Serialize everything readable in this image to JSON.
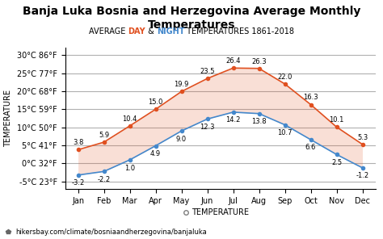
{
  "chart_data": {
    "type": "range_area",
    "title": "Banja Luka Bosnia and Herzegovina Average Monthly Temperatures",
    "subtitle": [
      {
        "text": "AVERAGE "
      },
      {
        "text": "DAY",
        "color": "#e05020"
      },
      {
        "text": " & "
      },
      {
        "text": "NIGHT",
        "color": "#4488cc"
      },
      {
        "text": " TEMPERATURES 1861-2018"
      }
    ],
    "categories": [
      "Jan",
      "Feb",
      "Mar",
      "Apr",
      "May",
      "Jun",
      "Jul",
      "Aug",
      "Sep",
      "Oct",
      "Nov",
      "Dec"
    ],
    "series": [
      {
        "name": "DAY",
        "color": "#e05020",
        "values": [
          3.8,
          5.9,
          10.4,
          15.0,
          19.9,
          23.5,
          26.4,
          26.3,
          22.0,
          16.3,
          10.1,
          5.3
        ]
      },
      {
        "name": "NIGHT",
        "color": "#4488cc",
        "values": [
          -3.2,
          -2.2,
          1.0,
          4.9,
          9.0,
          12.3,
          14.2,
          13.8,
          10.7,
          6.6,
          2.5,
          -1.2
        ]
      }
    ],
    "ylim": [
      -7,
      32
    ],
    "yticks": [
      {
        "value": -5,
        "label": "-5°C 23°F"
      },
      {
        "value": 0,
        "label": "0°C 32°F"
      },
      {
        "value": 5,
        "label": "5°C 41°F"
      },
      {
        "value": 10,
        "label": "10°C 50°F"
      },
      {
        "value": 15,
        "label": "15°C 59°F"
      },
      {
        "value": 20,
        "label": "20°C 68°F"
      },
      {
        "value": 25,
        "label": "25°C 77°F"
      },
      {
        "value": 30,
        "label": "30°C 86°F"
      }
    ],
    "ylabel": "TEMPERATURE",
    "xlabel": "TEMPERATURE",
    "footer": "hikersbay.com/climate/bosniaandherzegovina/banjaluka",
    "grid": "y",
    "data_labels": true
  }
}
